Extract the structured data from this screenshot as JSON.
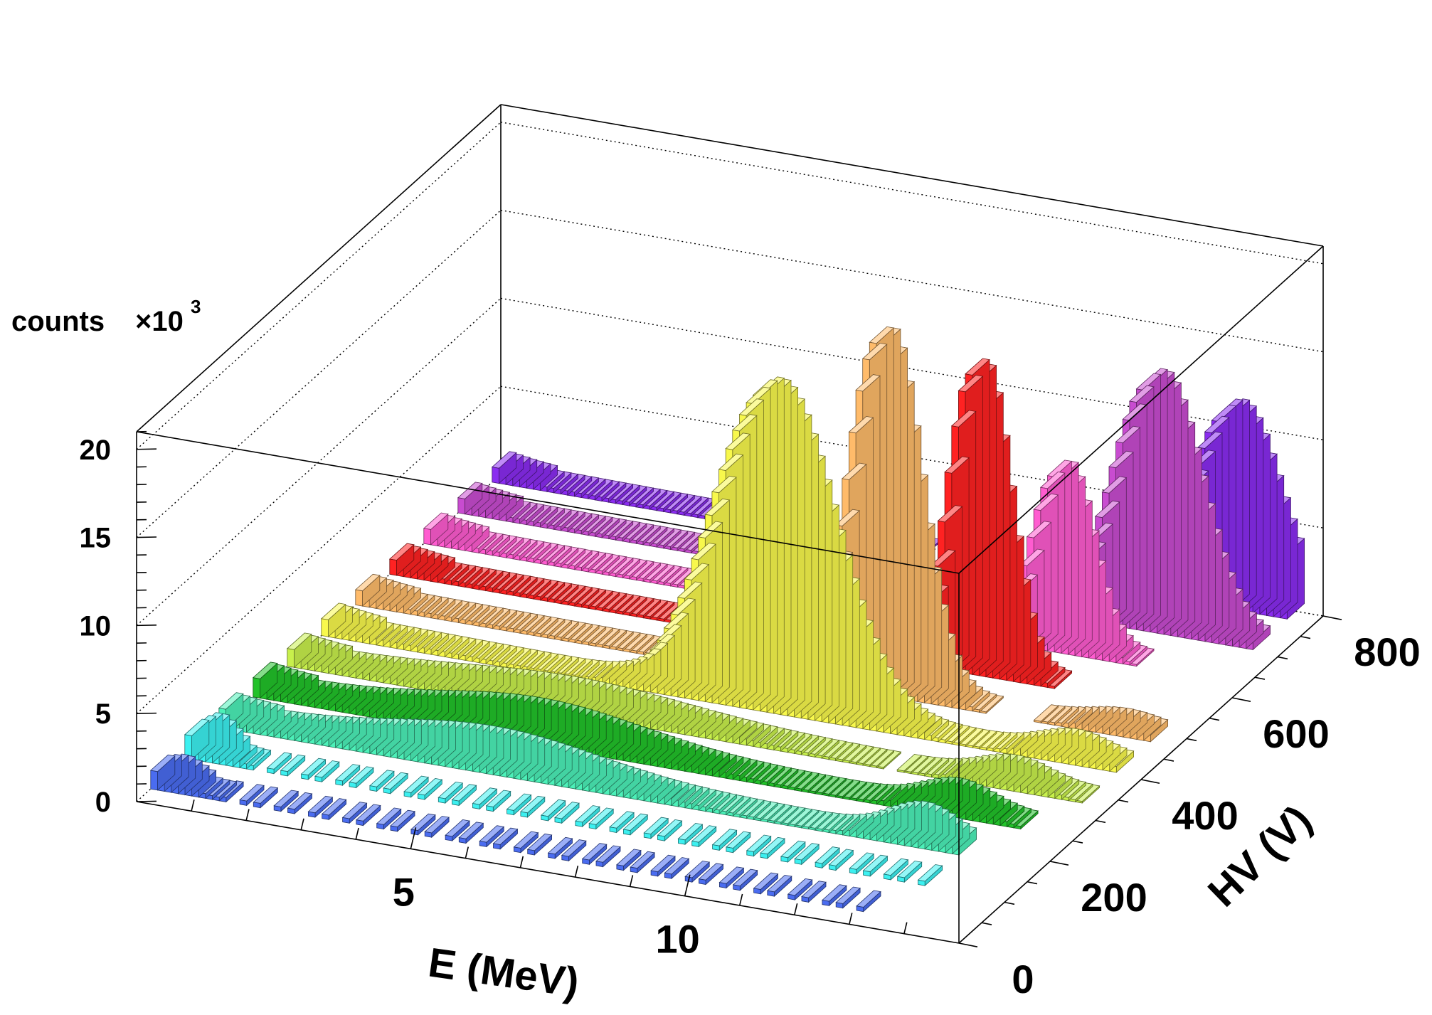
{
  "chart_data": {
    "type": "bar",
    "subtype": "lego3d",
    "xlabel": "E (MeV)",
    "ylabel": "HV (V)",
    "zlabel": "counts",
    "z_multiplier": "×10",
    "z_exponent": "3",
    "x_range": [
      0,
      15
    ],
    "y_range": [
      0,
      800
    ],
    "z_range": [
      0,
      21
    ],
    "x_ticks": [
      "5",
      "10"
    ],
    "x_tick_values": [
      5,
      10
    ],
    "y_ticks": [
      "0",
      "200",
      "400",
      "600",
      "800"
    ],
    "y_tick_values": [
      0,
      200,
      400,
      600,
      800
    ],
    "z_ticks": [
      "0",
      "5",
      "10",
      "15",
      "20"
    ],
    "z_tick_values": [
      0,
      5,
      10,
      15,
      20
    ],
    "series": [
      {
        "hv": 50,
        "color": "#4a6cf0",
        "peak_mev": 0.4,
        "peak_k": 0.6,
        "width_mev": 0.25,
        "tail_k": 0.25,
        "tail_mev": 5.0,
        "edge_mev": 13.0,
        "sparse": true
      },
      {
        "hv": 125,
        "color": "#3cf0f0",
        "peak_mev": 0.4,
        "peak_k": 1.2,
        "width_mev": 0.25,
        "tail_k": 0.3,
        "tail_mev": 5.0,
        "edge_mev": 13.5,
        "sparse": true
      },
      {
        "hv": 200,
        "color": "#4cf0b8",
        "peak_mev": 4.8,
        "peak_k": 1.5,
        "width_mev": 1.8,
        "tail_k": 0.5,
        "tail_mev": 6.0,
        "edge_mev": 13.5,
        "bump_mev": 12.6,
        "bump_k": 1.6
      },
      {
        "hv": 275,
        "color": "#22c22a",
        "peak_mev": 5.0,
        "peak_k": 1.5,
        "width_mev": 1.8,
        "tail_k": 0.5,
        "tail_mev": 6.0,
        "edge_mev": 14.0,
        "bump_mev": 12.6,
        "bump_k": 1.2
      },
      {
        "hv": 350,
        "color": "#c8f04c",
        "peak_mev": 5.0,
        "peak_k": 1.0,
        "width_mev": 2.0,
        "tail_k": 0.4,
        "tail_mev": 6.0,
        "edge_mev": 14.5,
        "bump_mev": 13.0,
        "bump_k": 1.0
      },
      {
        "hv": 425,
        "color": "#f8f84c",
        "peak_mev": 8.1,
        "peak_k": 18.0,
        "width_mev": 1.0,
        "tail_k": 0.4,
        "tail_mev": 6.0,
        "edge_mev": 14.5,
        "bump_mev": 13.5,
        "bump_k": 1.0
      },
      {
        "hv": 500,
        "color": "#ffbb6a",
        "peak_mev": 9.5,
        "peak_k": 20.0,
        "width_mev": 0.55,
        "tail_k": 0.3,
        "tail_mev": 6.0,
        "edge_mev": 14.5,
        "bump_mev": 13.8,
        "bump_k": 0.6
      },
      {
        "hv": 575,
        "color": "#ff2222",
        "peak_mev": 10.6,
        "peak_k": 17.0,
        "width_mev": 0.45,
        "tail_k": 0.3,
        "tail_mev": 6.0,
        "edge_mev": 14.5
      },
      {
        "hv": 650,
        "color": "#ff5cd0",
        "peak_mev": 11.5,
        "peak_k": 10.0,
        "width_mev": 0.45,
        "tail_k": 0.3,
        "tail_mev": 6.0,
        "edge_mev": 14.5
      },
      {
        "hv": 725,
        "color": "#c84cd0",
        "peak_mev": 12.6,
        "peak_k": 14.0,
        "width_mev": 0.7,
        "tail_k": 0.3,
        "tail_mev": 6.0,
        "edge_mev": 14.5
      },
      {
        "hv": 800,
        "color": "#8a2cf0",
        "peak_mev": 13.4,
        "peak_k": 11.0,
        "width_mev": 0.7,
        "tail_k": 0.3,
        "tail_mev": 6.0,
        "edge_mev": 14.5
      }
    ]
  }
}
